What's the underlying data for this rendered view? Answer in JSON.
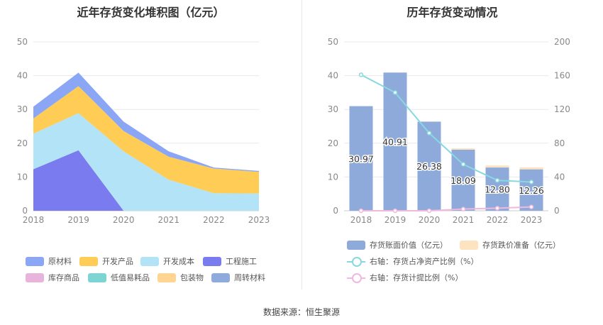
{
  "chart_data": [
    {
      "type": "area",
      "stacked": true,
      "title": "近年存货变化堆积图（亿元）",
      "categories": [
        "2018",
        "2019",
        "2020",
        "2021",
        "2022",
        "2023"
      ],
      "ylim": [
        0,
        50
      ],
      "yticks": [
        0,
        10,
        20,
        30,
        40,
        50
      ],
      "grid": true,
      "legend_position": "bottom",
      "series": [
        {
          "name": "原材料",
          "color": "#8aa6f5",
          "values": [
            3.5,
            4.0,
            2.8,
            1.6,
            0.3,
            0.3
          ]
        },
        {
          "name": "开发产品",
          "color": "#ffcc55",
          "values": [
            4.5,
            8.0,
            6.0,
            6.8,
            7.3,
            6.4
          ]
        },
        {
          "name": "开发成本",
          "color": "#b2e3f7",
          "values": [
            10.5,
            11.0,
            17.6,
            9.2,
            5.2,
            5.1
          ]
        },
        {
          "name": "工程施工",
          "color": "#7b7bf0",
          "values": [
            12.3,
            17.9,
            0,
            0,
            0,
            0
          ]
        },
        {
          "name": "库存商品",
          "color": "#e8b4dc",
          "values": [
            0,
            0,
            0,
            0,
            0,
            0
          ]
        },
        {
          "name": "低值易耗品",
          "color": "#7ed3d3",
          "values": [
            0,
            0,
            0,
            0,
            0,
            0
          ]
        },
        {
          "name": "包装物",
          "color": "#ffd591",
          "values": [
            0,
            0,
            0,
            0,
            0,
            0
          ]
        },
        {
          "name": "周转材料",
          "color": "#8faadc",
          "values": [
            0,
            0,
            0,
            0,
            0,
            0
          ]
        }
      ]
    },
    {
      "type": "bar",
      "title": "历年存货变动情况",
      "categories": [
        "2018",
        "2019",
        "2020",
        "2021",
        "2022",
        "2023"
      ],
      "ylim": [
        0,
        50
      ],
      "yticks": [
        0,
        10,
        20,
        30,
        40,
        50
      ],
      "y2lim": [
        0,
        200
      ],
      "y2ticks": [
        0,
        40,
        80,
        120,
        160,
        200
      ],
      "grid": true,
      "legend_position": "bottom",
      "series": [
        {
          "name": "存货账面价值（亿元）",
          "type": "bar",
          "axis": "left",
          "color": "#8eaadb",
          "values": [
            30.97,
            40.91,
            26.38,
            18.09,
            12.8,
            12.26
          ],
          "labels": [
            "30.97",
            "40.91",
            "26.38",
            "18.09",
            "12.80",
            "12.26"
          ]
        },
        {
          "name": "存货跌价准备（亿元）",
          "type": "bar",
          "axis": "left",
          "color": "#fde3bf",
          "values": [
            0,
            0,
            0,
            0.4,
            0.6,
            0.6
          ]
        },
        {
          "name": "右轴：存货占净资产比例（%）",
          "type": "line",
          "axis": "right",
          "color": "#88d8e0",
          "values": [
            161,
            140,
            92,
            55,
            36,
            34
          ]
        },
        {
          "name": "右轴：存货计提比例（%）",
          "type": "line",
          "axis": "right",
          "color": "#f0b8dc",
          "values": [
            0,
            0,
            0,
            2,
            3,
            4.5
          ]
        }
      ]
    }
  ],
  "source_text": "数据来源：恒生聚源"
}
